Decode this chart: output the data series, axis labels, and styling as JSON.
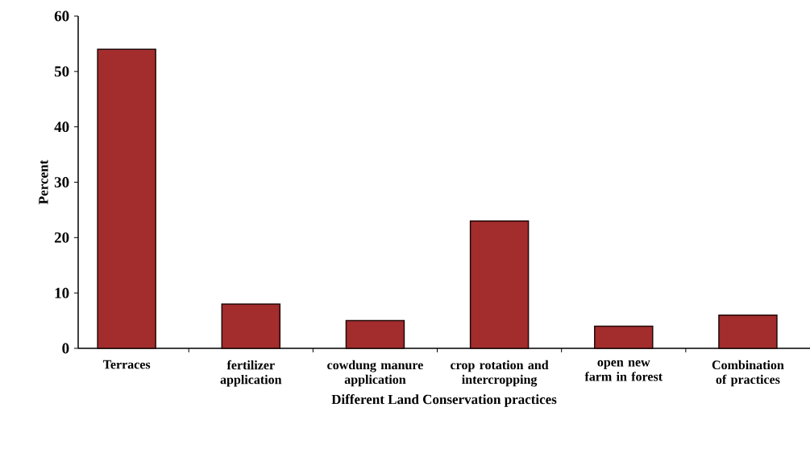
{
  "chart_data": {
    "type": "bar",
    "xlabel": "Different Land Conservation practices",
    "ylabel": "Percent",
    "categories": [
      "Terraces",
      "fertilizer application",
      "cowdung manure application",
      "crop rotation and intercropping",
      "open new farm in forest",
      "Combination of practices"
    ],
    "values": [
      54,
      8,
      5,
      23,
      4,
      6
    ],
    "color": "#a32c2c",
    "ylim": [
      0,
      60
    ],
    "yticks": [
      0,
      10,
      20,
      30,
      40,
      50,
      60
    ],
    "grid": false
  }
}
